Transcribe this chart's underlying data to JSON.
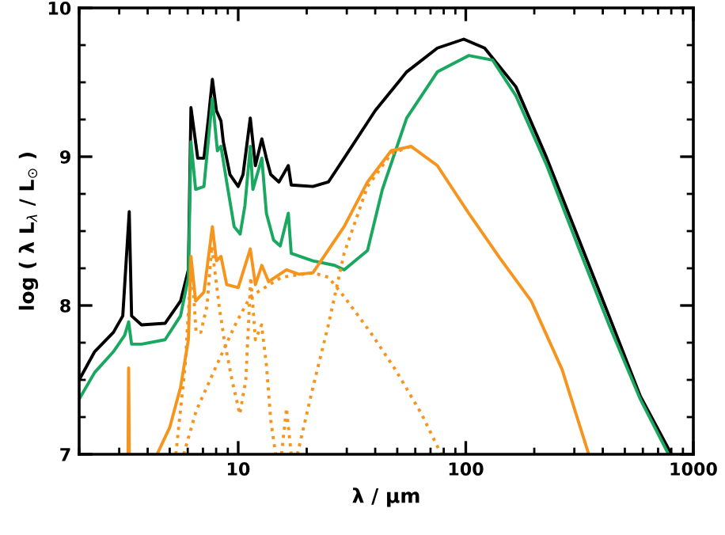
{
  "chart_data": {
    "type": "line",
    "xlabel": "λ / μm",
    "ylabel": "log ( λ L$_{λ}$ / L$_{⊙}$ )",
    "log": "x",
    "xlim": [
      2,
      1000
    ],
    "ylim": [
      7,
      10
    ],
    "xticks": [
      {
        "value": 2,
        "label": null
      },
      {
        "value": 3,
        "label": null
      },
      {
        "value": 4,
        "label": null
      },
      {
        "value": 5,
        "label": null
      },
      {
        "value": 6,
        "label": null
      },
      {
        "value": 7,
        "label": null
      },
      {
        "value": 8,
        "label": null
      },
      {
        "value": 9,
        "label": null
      },
      10,
      {
        "value": 20,
        "label": null
      },
      {
        "value": 30,
        "label": null
      },
      {
        "value": 40,
        "label": null
      },
      {
        "value": 50,
        "label": null
      },
      {
        "value": 60,
        "label": null
      },
      {
        "value": 70,
        "label": null
      },
      {
        "value": 80,
        "label": null
      },
      {
        "value": 90,
        "label": null
      },
      100,
      {
        "value": 200,
        "label": null
      },
      {
        "value": 300,
        "label": null
      },
      {
        "value": 400,
        "label": null
      },
      {
        "value": 500,
        "label": null
      },
      {
        "value": 600,
        "label": null
      },
      {
        "value": 700,
        "label": null
      },
      {
        "value": 800,
        "label": null
      },
      {
        "value": 900,
        "label": null
      },
      1000
    ],
    "yticks": [
      7,
      {
        "value": 7.25,
        "label": null
      },
      {
        "value": 7.5,
        "label": null
      },
      {
        "value": 7.75,
        "label": null
      },
      8,
      {
        "value": 8.25,
        "label": null
      },
      {
        "value": 8.5,
        "label": null
      },
      {
        "value": 8.75,
        "label": null
      },
      9,
      {
        "value": 9.25,
        "label": null
      },
      {
        "value": 9.5,
        "label": null
      },
      {
        "value": 9.75,
        "label": null
      },
      10
    ],
    "grid": false,
    "marker": "none",
    "series": [
      {
        "color": "#000000",
        "line_style": "solid",
        "x": [
          2.0,
          2.34,
          2.83,
          3.11,
          3.32,
          3.4,
          3.76,
          4.77,
          5.58,
          6.04,
          6.2,
          6.64,
          7.07,
          7.4,
          7.7,
          8.02,
          8.4,
          8.6,
          9.2,
          10,
          10.5,
          11.3,
          11.9,
          12.7,
          13.3,
          13.9,
          15.1,
          16.6,
          17.1,
          21.3,
          24.9,
          29.2,
          40,
          55,
          75,
          98,
          121,
          166,
          227,
          311,
          426,
          585,
          801
        ],
        "values": [
          7.5,
          7.69,
          7.82,
          7.93,
          8.63,
          7.93,
          7.87,
          7.88,
          8.03,
          8.24,
          9.33,
          8.99,
          8.99,
          9.26,
          9.52,
          9.31,
          9.24,
          9.1,
          8.88,
          8.8,
          8.88,
          9.26,
          8.94,
          9.12,
          8.99,
          8.88,
          8.83,
          8.94,
          8.81,
          8.8,
          8.83,
          8.99,
          9.31,
          9.57,
          9.73,
          9.79,
          9.73,
          9.47,
          8.99,
          8.46,
          7.93,
          7.39,
          7.0
        ]
      },
      {
        "color": "#1aa860",
        "line_style": "solid",
        "x": [
          2.0,
          2.34,
          2.83,
          3.17,
          3.3,
          3.4,
          3.76,
          4.77,
          5.58,
          6.04,
          6.2,
          6.5,
          7.07,
          7.7,
          8.1,
          8.4,
          8.9,
          9.6,
          10.2,
          10.7,
          11.3,
          11.6,
          12.7,
          13.3,
          14.3,
          15.3,
          16.6,
          17.1,
          21.3,
          26.5,
          29.2,
          37,
          43,
          55,
          75,
          103,
          131,
          166,
          227,
          311,
          426,
          585,
          778
        ],
        "values": [
          7.37,
          7.55,
          7.69,
          7.8,
          7.89,
          7.74,
          7.74,
          7.77,
          7.93,
          8.19,
          9.1,
          8.78,
          8.8,
          9.39,
          9.04,
          9.07,
          8.83,
          8.53,
          8.48,
          8.67,
          9.07,
          8.78,
          8.99,
          8.62,
          8.44,
          8.4,
          8.62,
          8.35,
          8.3,
          8.27,
          8.24,
          8.37,
          8.78,
          9.26,
          9.57,
          9.68,
          9.65,
          9.41,
          8.94,
          8.4,
          7.87,
          7.37,
          7.0
        ]
      },
      {
        "color": "#f7941d",
        "line_style": "solid",
        "x": [
          3.28,
          3.3,
          3.32,
          4.0,
          4.4,
          5.0,
          5.58,
          6.04,
          6.2,
          6.5,
          7.07,
          7.7,
          8.02,
          8.4,
          8.9,
          10,
          11.3,
          11.9,
          12.7,
          13.6,
          16.3,
          18.5,
          21.3,
          29.2,
          37,
          47,
          57.5,
          75,
          103,
          141,
          194,
          265,
          347
        ],
        "values": [
          7.0,
          7.58,
          7.0,
          null,
          7.0,
          7.18,
          7.45,
          7.77,
          8.33,
          8.03,
          8.09,
          8.53,
          8.3,
          8.33,
          8.14,
          8.12,
          8.38,
          8.14,
          8.27,
          8.16,
          8.24,
          8.21,
          8.22,
          8.53,
          8.83,
          9.04,
          9.07,
          8.94,
          8.62,
          8.32,
          8.03,
          7.57,
          7.0
        ]
      },
      {
        "color": "#f7941d",
        "line_style": "dotted",
        "x": [
          5.76,
          6.53,
          8.27,
          9.7,
          11.3,
          15.5,
          21.3,
          24.9,
          29.2,
          38.1,
          49,
          64,
          78
        ],
        "values": [
          7.0,
          7.29,
          7.64,
          7.87,
          8.06,
          8.19,
          8.22,
          8.19,
          8.06,
          7.82,
          7.57,
          7.27,
          7.0
        ]
      },
      {
        "color": "#f7941d",
        "line_style": "dotted",
        "x": [
          18.2,
          21.3,
          24.9,
          29.2,
          37,
          47,
          57.5
        ],
        "values": [
          7.0,
          7.45,
          7.87,
          8.35,
          8.8,
          9.02,
          9.07
        ]
      },
      {
        "color": "#f7941d",
        "line_style": "dotted",
        "x": [
          5.32,
          5.85,
          6.23,
          6.53,
          6.85,
          7.3,
          7.65,
          8.27,
          8.68,
          9.39,
          10.16,
          10.8,
          11.35,
          11.9,
          12.67,
          13.3,
          13.9,
          14.6,
          15.5,
          16.3,
          17.1
        ],
        "values": [
          7.0,
          7.6,
          8.3,
          7.82,
          7.82,
          8.0,
          8.4,
          7.98,
          7.77,
          7.5,
          7.27,
          7.5,
          8.19,
          7.77,
          7.87,
          7.6,
          7.23,
          7.0,
          7.0,
          7.31,
          7.0
        ]
      }
    ]
  }
}
